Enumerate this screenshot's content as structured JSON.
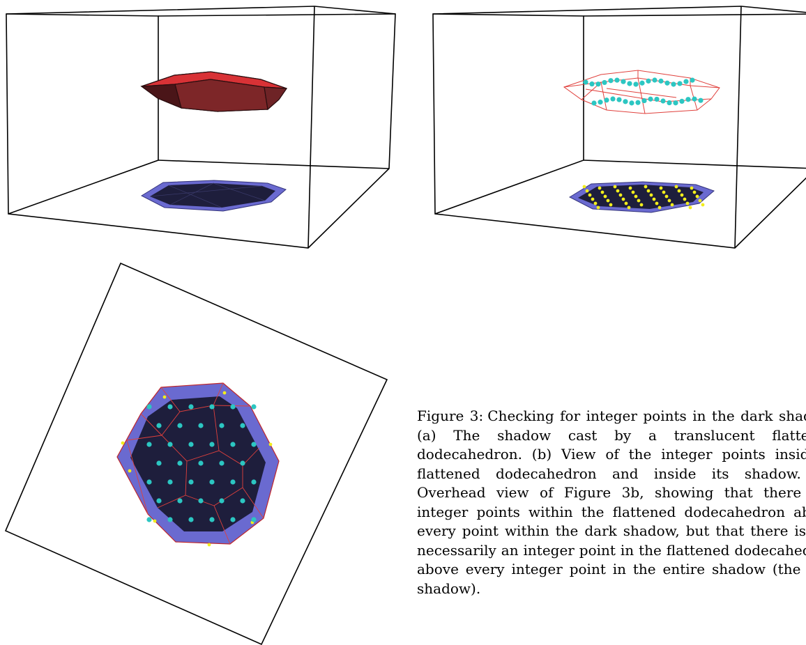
{
  "figure": {
    "caption_label": "Figure 3:",
    "caption_text": "Checking for integer points in the dark shadow. (a) The shadow cast by a translucent flattened dodecahedron. (b) View of the integer points inside a flattened dodecahedron and inside its shadow. (c) Overhead view of Figure 3b, showing that there are integer points within the flattened dodecahedron above every point within the dark shadow, but that there is not necessarily an integer point in the flattened dodecahedron above every integer point in the entire shadow (the real shadow)."
  },
  "colors": {
    "dodecahedron_fill": "#c0262a",
    "dodecahedron_dark": "#5a1b1f",
    "real_shadow": "#6a6ad0",
    "dark_shadow": "#1e1e3c",
    "interior_points": "#2cc6c2",
    "shadow_points": "#f2ee1c",
    "wireframe": "#e0403c",
    "box_lines": "#000000"
  },
  "panels": [
    {
      "name": "panel-a",
      "content": "translucent flattened dodecahedron and its shadow"
    },
    {
      "name": "panel-b",
      "content": "integer points inside dodecahedron and shadow"
    },
    {
      "name": "panel-c",
      "content": "overhead view"
    }
  ]
}
